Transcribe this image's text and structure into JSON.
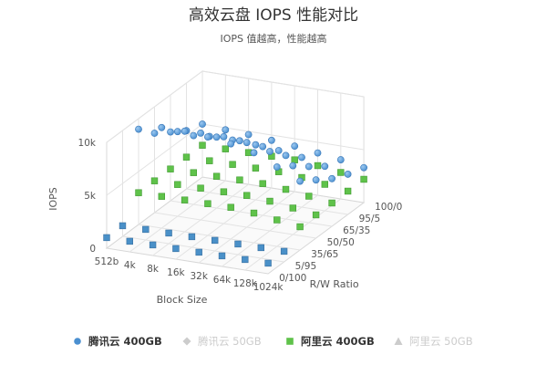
{
  "chart_data": {
    "type": "scatter",
    "subtype": "3d-scatter",
    "title": "高效云盘 IOPS 性能对比",
    "subtitle": "IOPS 值越高，性能越高",
    "ylabel": "IOPS",
    "xlabel": "Block Size",
    "zlabel": "R/W Ratio",
    "ylim": [
      0,
      10000
    ],
    "y_ticks": [
      "0",
      "5k",
      "10k"
    ],
    "x_categories": [
      "512b",
      "4k",
      "8k",
      "16k",
      "32k",
      "64k",
      "128k",
      "1024k"
    ],
    "z_categories": [
      "0/100",
      "5/95",
      "35/65",
      "50/50",
      "65/35",
      "95/5",
      "100/0"
    ],
    "grid": true,
    "legend_position": "bottom",
    "colors": {
      "tencent400": "#4a8fd0",
      "ali400": "#5fc24a",
      "ali400_front": "#4a90c8",
      "hidden": "#cccccc"
    },
    "legend": [
      {
        "label": "腾讯云 400GB",
        "marker": "circle",
        "visible": true
      },
      {
        "label": "腾讯云 50GB",
        "marker": "diamond",
        "visible": false
      },
      {
        "label": "阿里云 400GB",
        "marker": "square",
        "visible": true
      },
      {
        "label": "阿里云 50GB",
        "marker": "triangle",
        "visible": false
      }
    ],
    "series": [
      {
        "name": "腾讯云 400GB",
        "marker": "circle",
        "points": [
          {
            "x": "512b",
            "z": "100/0",
            "y": 5000
          },
          {
            "x": "512b",
            "z": "95/5",
            "y": 5500
          },
          {
            "x": "512b",
            "z": "65/35",
            "y": 6500
          },
          {
            "x": "512b",
            "z": "50/50",
            "y": 7500
          },
          {
            "x": "512b",
            "z": "35/65",
            "y": 9000
          },
          {
            "x": "4k",
            "z": "100/0",
            "y": 4800
          },
          {
            "x": "4k",
            "z": "95/5",
            "y": 5300
          },
          {
            "x": "4k",
            "z": "65/35",
            "y": 6500
          },
          {
            "x": "4k",
            "z": "50/50",
            "y": 8000
          },
          {
            "x": "4k",
            "z": "35/65",
            "y": 9500
          },
          {
            "x": "8k",
            "z": "100/0",
            "y": 4700
          },
          {
            "x": "8k",
            "z": "95/5",
            "y": 5300
          },
          {
            "x": "8k",
            "z": "65/35",
            "y": 6700
          },
          {
            "x": "8k",
            "z": "50/50",
            "y": 8200
          },
          {
            "x": "8k",
            "z": "35/65",
            "y": 9500
          },
          {
            "x": "16k",
            "z": "100/0",
            "y": 4500
          },
          {
            "x": "16k",
            "z": "95/5",
            "y": 5200
          },
          {
            "x": "16k",
            "z": "65/35",
            "y": 6700
          },
          {
            "x": "16k",
            "z": "50/50",
            "y": 8200
          },
          {
            "x": "16k",
            "z": "35/65",
            "y": 9300
          },
          {
            "x": "32k",
            "z": "100/0",
            "y": 4300
          },
          {
            "x": "32k",
            "z": "95/5",
            "y": 5000
          },
          {
            "x": "32k",
            "z": "65/35",
            "y": 6500
          },
          {
            "x": "32k",
            "z": "50/50",
            "y": 8000
          },
          {
            "x": "32k",
            "z": "35/65",
            "y": 9000
          },
          {
            "x": "64k",
            "z": "100/0",
            "y": 4000
          },
          {
            "x": "64k",
            "z": "95/5",
            "y": 4700
          },
          {
            "x": "64k",
            "z": "65/35",
            "y": 6000
          },
          {
            "x": "64k",
            "z": "50/50",
            "y": 7500
          },
          {
            "x": "64k",
            "z": "35/65",
            "y": 8500
          },
          {
            "x": "128k",
            "z": "100/0",
            "y": 3700
          },
          {
            "x": "128k",
            "z": "95/5",
            "y": 4200
          },
          {
            "x": "128k",
            "z": "65/35",
            "y": 5300
          },
          {
            "x": "128k",
            "z": "50/50",
            "y": 6500
          },
          {
            "x": "128k",
            "z": "35/65",
            "y": 7500
          },
          {
            "x": "1024k",
            "z": "100/0",
            "y": 3300
          },
          {
            "x": "1024k",
            "z": "95/5",
            "y": 3800
          },
          {
            "x": "1024k",
            "z": "65/35",
            "y": 4500
          },
          {
            "x": "1024k",
            "z": "50/50",
            "y": 5500
          },
          {
            "x": "1024k",
            "z": "35/65",
            "y": 6500
          }
        ]
      },
      {
        "name": "阿里云 400GB",
        "marker": "square",
        "points": [
          {
            "x": "512b",
            "z": "100/0",
            "y": 3000
          },
          {
            "x": "512b",
            "z": "95/5",
            "y": 3000
          },
          {
            "x": "512b",
            "z": "65/35",
            "y": 3000
          },
          {
            "x": "512b",
            "z": "50/50",
            "y": 3000
          },
          {
            "x": "512b",
            "z": "35/65",
            "y": 3000
          },
          {
            "x": "512b",
            "z": "5/95",
            "y": 1000
          },
          {
            "x": "512b",
            "z": "0/100",
            "y": 1000
          },
          {
            "x": "4k",
            "z": "100/0",
            "y": 3000
          },
          {
            "x": "4k",
            "z": "95/5",
            "y": 3000
          },
          {
            "x": "4k",
            "z": "65/35",
            "y": 3000
          },
          {
            "x": "4k",
            "z": "50/50",
            "y": 3000
          },
          {
            "x": "4k",
            "z": "35/65",
            "y": 3000
          },
          {
            "x": "4k",
            "z": "5/95",
            "y": 1000
          },
          {
            "x": "4k",
            "z": "0/100",
            "y": 1000
          },
          {
            "x": "8k",
            "z": "100/0",
            "y": 3000
          },
          {
            "x": "8k",
            "z": "95/5",
            "y": 3000
          },
          {
            "x": "8k",
            "z": "65/35",
            "y": 3000
          },
          {
            "x": "8k",
            "z": "50/50",
            "y": 3000
          },
          {
            "x": "8k",
            "z": "35/65",
            "y": 3000
          },
          {
            "x": "8k",
            "z": "5/95",
            "y": 1000
          },
          {
            "x": "8k",
            "z": "0/100",
            "y": 1000
          },
          {
            "x": "16k",
            "z": "100/0",
            "y": 3000
          },
          {
            "x": "16k",
            "z": "95/5",
            "y": 3000
          },
          {
            "x": "16k",
            "z": "65/35",
            "y": 3000
          },
          {
            "x": "16k",
            "z": "50/50",
            "y": 3000
          },
          {
            "x": "16k",
            "z": "35/65",
            "y": 3000
          },
          {
            "x": "16k",
            "z": "5/95",
            "y": 1000
          },
          {
            "x": "16k",
            "z": "0/100",
            "y": 1000
          },
          {
            "x": "32k",
            "z": "100/0",
            "y": 3000
          },
          {
            "x": "32k",
            "z": "95/5",
            "y": 3000
          },
          {
            "x": "32k",
            "z": "65/35",
            "y": 3000
          },
          {
            "x": "32k",
            "z": "50/50",
            "y": 3000
          },
          {
            "x": "32k",
            "z": "35/65",
            "y": 3000
          },
          {
            "x": "32k",
            "z": "5/95",
            "y": 1000
          },
          {
            "x": "32k",
            "z": "0/100",
            "y": 1000
          },
          {
            "x": "64k",
            "z": "100/0",
            "y": 2800
          },
          {
            "x": "64k",
            "z": "95/5",
            "y": 2800
          },
          {
            "x": "64k",
            "z": "65/35",
            "y": 2800
          },
          {
            "x": "64k",
            "z": "50/50",
            "y": 2800
          },
          {
            "x": "64k",
            "z": "35/65",
            "y": 2800
          },
          {
            "x": "64k",
            "z": "5/95",
            "y": 1000
          },
          {
            "x": "64k",
            "z": "0/100",
            "y": 1000
          },
          {
            "x": "128k",
            "z": "100/0",
            "y": 2500
          },
          {
            "x": "128k",
            "z": "95/5",
            "y": 2500
          },
          {
            "x": "128k",
            "z": "65/35",
            "y": 2500
          },
          {
            "x": "128k",
            "z": "50/50",
            "y": 2500
          },
          {
            "x": "128k",
            "z": "35/65",
            "y": 2500
          },
          {
            "x": "128k",
            "z": "5/95",
            "y": 1000
          },
          {
            "x": "128k",
            "z": "0/100",
            "y": 1000
          },
          {
            "x": "1024k",
            "z": "100/0",
            "y": 2200
          },
          {
            "x": "1024k",
            "z": "95/5",
            "y": 2200
          },
          {
            "x": "1024k",
            "z": "65/35",
            "y": 2200
          },
          {
            "x": "1024k",
            "z": "50/50",
            "y": 2200
          },
          {
            "x": "1024k",
            "z": "35/65",
            "y": 2200
          },
          {
            "x": "1024k",
            "z": "5/95",
            "y": 1000
          },
          {
            "x": "1024k",
            "z": "0/100",
            "y": 1000
          }
        ]
      }
    ]
  }
}
